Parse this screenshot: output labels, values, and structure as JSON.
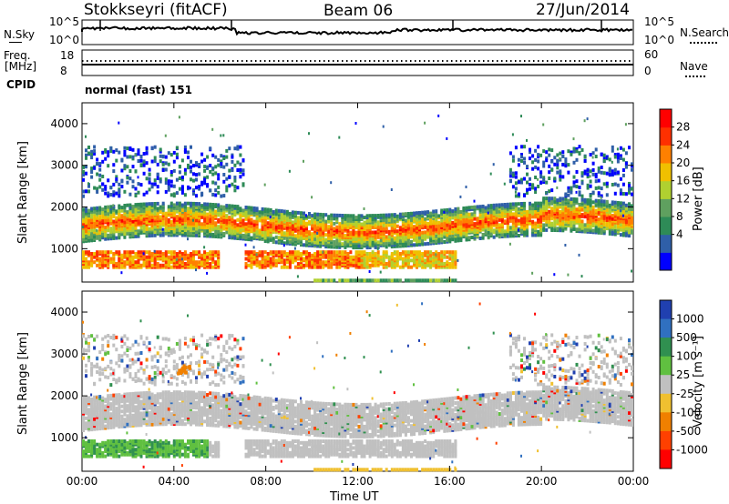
{
  "header": {
    "station": "Stokkseyri (fitACF)",
    "beam": "Beam 06",
    "date": "27/Jun/2014"
  },
  "noise_panel": {
    "left_label": "N.Sky",
    "right_label": "N.Search",
    "left_ticks": [
      "10^5",
      "10^0"
    ],
    "right_ticks": [
      "10^5",
      "10^0"
    ]
  },
  "freq_panel": {
    "left_label": "Freq.",
    "left_unit": "[MHz]",
    "right_label": "Nave",
    "left_ticks": [
      "18",
      "8"
    ],
    "right_ticks": [
      "60",
      "0"
    ]
  },
  "cpid": {
    "label": "CPID",
    "value": "normal (fast) 151"
  },
  "chart_data": [
    {
      "type": "heatmap",
      "name": "Power",
      "ylabel": "Slant Range [km]",
      "xlabel": "Time UT",
      "ylim": [
        200,
        4500
      ],
      "y_ticks": [
        "4000",
        "3000",
        "2000",
        "1000"
      ],
      "x_ticks": [
        "00:00",
        "04:00",
        "08:00",
        "12:00",
        "16:00",
        "20:00",
        "00:00"
      ],
      "colorbar_label": "Power [dB]",
      "colorbar_ticks": [
        "28",
        "24",
        "20",
        "16",
        "12",
        "8",
        "4"
      ],
      "colorbar_colors": [
        "#0000ff",
        "#2f5fa8",
        "#2e8b57",
        "#5fa05f",
        "#b0d030",
        "#f0c000",
        "#ff8000",
        "#ff3000",
        "#ff0000"
      ]
    },
    {
      "type": "heatmap",
      "name": "Velocity",
      "ylabel": "Slant Range [km]",
      "xlabel": "Time UT",
      "ylim": [
        200,
        4500
      ],
      "y_ticks": [
        "4000",
        "3000",
        "2000",
        "1000"
      ],
      "x_ticks": [
        "00:00",
        "04:00",
        "08:00",
        "12:00",
        "16:00",
        "20:00",
        "00:00"
      ],
      "colorbar_label": "Velocity [m s⁻¹]",
      "colorbar_ticks": [
        "1000",
        "500",
        "100",
        "25",
        "-25",
        "-100",
        "-500",
        "-1000"
      ],
      "colorbar_colors": [
        "#2040b0",
        "#3070c0",
        "#309050",
        "#60c040",
        "#c0c0c0",
        "#f0c030",
        "#f08000",
        "#ff4000",
        "#ff0000"
      ]
    }
  ]
}
